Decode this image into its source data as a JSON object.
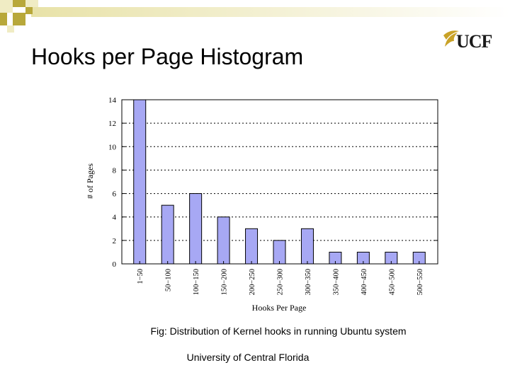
{
  "slide": {
    "title": "Hooks per Page Histogram",
    "logo_text": "UCF",
    "caption": "Fig: Distribution of Kernel hooks in running Ubuntu system",
    "footer": "University of Central Florida"
  },
  "colors": {
    "bar_fill": "#a7a8f4",
    "bar_stroke": "#000000",
    "grid": "#000000",
    "corner_dark": "#b8a83a",
    "corner_light": "#f0ecc4",
    "logo_gold": "#c9a227"
  },
  "chart_data": {
    "type": "bar",
    "categories": [
      "1−50",
      "50−100",
      "100−150",
      "150−200",
      "200−250",
      "250−300",
      "300−350",
      "350−400",
      "400−450",
      "450−500",
      "500−550"
    ],
    "values": [
      14,
      5,
      6,
      4,
      3,
      2,
      3,
      1,
      1,
      1,
      1
    ],
    "xlabel": "Hooks Per Page",
    "ylabel": "# of Pages",
    "ylim": [
      0,
      14
    ],
    "yticks": [
      0,
      2,
      4,
      6,
      8,
      10,
      12,
      14
    ],
    "grid": "horizontal dotted"
  }
}
